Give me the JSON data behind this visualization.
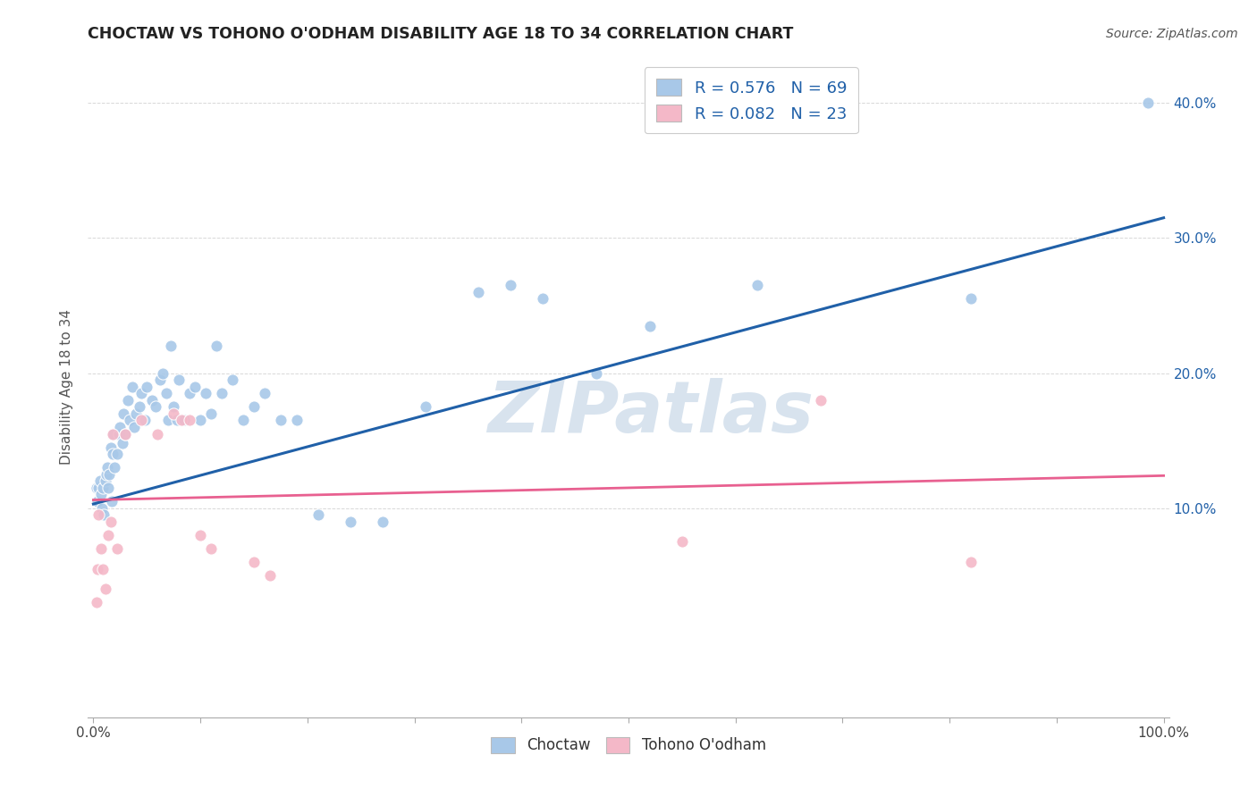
{
  "title": "CHOCTAW VS TOHONO O'ODHAM DISABILITY AGE 18 TO 34 CORRELATION CHART",
  "source": "Source: ZipAtlas.com",
  "ylabel": "Disability Age 18 to 34",
  "xlim": [
    -0.005,
    1.005
  ],
  "ylim": [
    -0.055,
    0.435
  ],
  "xtick_positions": [
    0.0,
    0.1,
    0.2,
    0.3,
    0.4,
    0.5,
    0.6,
    0.7,
    0.8,
    0.9,
    1.0
  ],
  "xticklabels": [
    "0.0%",
    "",
    "",
    "",
    "",
    "",
    "",
    "",
    "",
    "",
    "100.0%"
  ],
  "ytick_positions": [
    0.1,
    0.2,
    0.3,
    0.4
  ],
  "yticklabels": [
    "10.0%",
    "20.0%",
    "30.0%",
    "40.0%"
  ],
  "blue_dot_color": "#a8c8e8",
  "pink_dot_color": "#f4b8c8",
  "blue_line_color": "#2060a8",
  "pink_line_color": "#e86090",
  "watermark_color": "#c8d8e8",
  "grid_color": "#d8d8d8",
  "legend_r_blue": "R = 0.576",
  "legend_n_blue": "N = 69",
  "legend_r_pink": "R = 0.082",
  "legend_n_pink": "N = 23",
  "choctaw_label": "Choctaw",
  "tohono_label": "Tohono O'odham",
  "blue_trend_x": [
    0.0,
    1.0
  ],
  "blue_trend_y": [
    0.103,
    0.315
  ],
  "pink_trend_x": [
    0.0,
    1.0
  ],
  "pink_trend_y": [
    0.106,
    0.124
  ],
  "choctaw_x": [
    0.003,
    0.004,
    0.005,
    0.006,
    0.007,
    0.008,
    0.009,
    0.01,
    0.011,
    0.012,
    0.013,
    0.014,
    0.015,
    0.016,
    0.017,
    0.018,
    0.019,
    0.02,
    0.022,
    0.024,
    0.025,
    0.027,
    0.028,
    0.03,
    0.032,
    0.034,
    0.036,
    0.038,
    0.04,
    0.043,
    0.045,
    0.048,
    0.05,
    0.055,
    0.058,
    0.062,
    0.065,
    0.068,
    0.07,
    0.072,
    0.075,
    0.078,
    0.08,
    0.085,
    0.09,
    0.095,
    0.1,
    0.105,
    0.11,
    0.115,
    0.12,
    0.13,
    0.14,
    0.15,
    0.16,
    0.175,
    0.19,
    0.21,
    0.24,
    0.27,
    0.31,
    0.36,
    0.39,
    0.42,
    0.47,
    0.52,
    0.62,
    0.82,
    0.985
  ],
  "choctaw_y": [
    0.115,
    0.105,
    0.115,
    0.12,
    0.11,
    0.1,
    0.115,
    0.095,
    0.12,
    0.125,
    0.13,
    0.115,
    0.125,
    0.145,
    0.105,
    0.14,
    0.155,
    0.13,
    0.14,
    0.155,
    0.16,
    0.148,
    0.17,
    0.155,
    0.18,
    0.165,
    0.19,
    0.16,
    0.17,
    0.175,
    0.185,
    0.165,
    0.19,
    0.18,
    0.175,
    0.195,
    0.2,
    0.185,
    0.165,
    0.22,
    0.175,
    0.165,
    0.195,
    0.165,
    0.185,
    0.19,
    0.165,
    0.185,
    0.17,
    0.22,
    0.185,
    0.195,
    0.165,
    0.175,
    0.185,
    0.165,
    0.165,
    0.095,
    0.09,
    0.09,
    0.175,
    0.26,
    0.265,
    0.255,
    0.2,
    0.235,
    0.265,
    0.255,
    0.4
  ],
  "tohono_x": [
    0.003,
    0.004,
    0.005,
    0.007,
    0.009,
    0.011,
    0.014,
    0.016,
    0.018,
    0.022,
    0.03,
    0.045,
    0.06,
    0.075,
    0.082,
    0.09,
    0.1,
    0.11,
    0.15,
    0.165,
    0.55,
    0.68,
    0.82
  ],
  "tohono_y": [
    0.03,
    0.055,
    0.095,
    0.07,
    0.055,
    0.04,
    0.08,
    0.09,
    0.155,
    0.07,
    0.155,
    0.165,
    0.155,
    0.17,
    0.165,
    0.165,
    0.08,
    0.07,
    0.06,
    0.05,
    0.075,
    0.18,
    0.06
  ]
}
